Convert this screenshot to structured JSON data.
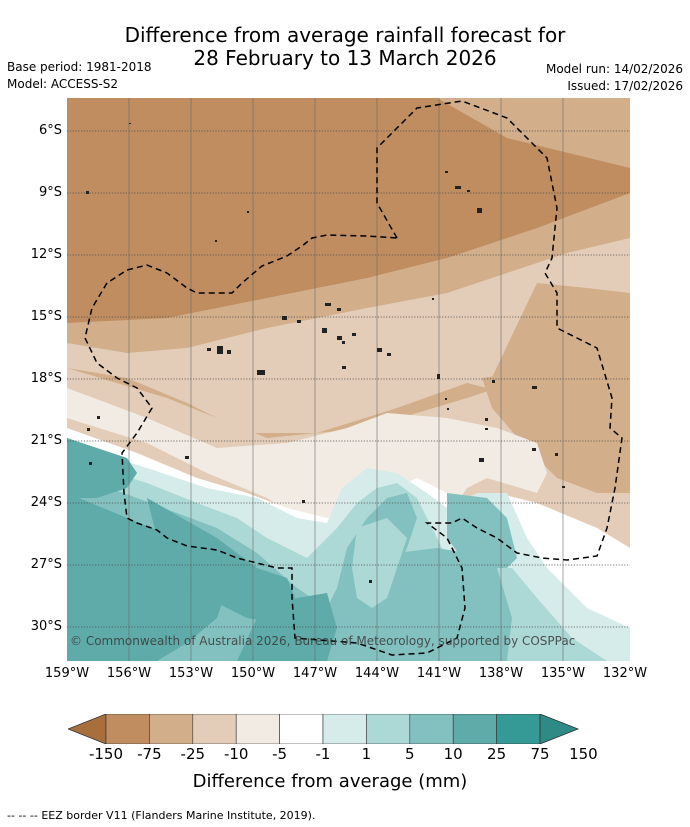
{
  "title": {
    "line1": "Difference from average rainfall forecast for",
    "line2": "28 February to 13 March 2026"
  },
  "meta": {
    "base_period": "Base period: 1981-2018",
    "model": "Model: ACCESS-S2",
    "model_run": "Model run: 14/02/2026",
    "issued": "Issued: 17/02/2026"
  },
  "map": {
    "lat_labels": [
      "6°S",
      "9°S",
      "12°S",
      "15°S",
      "18°S",
      "21°S",
      "24°S",
      "27°S",
      "30°S"
    ],
    "lon_labels": [
      "159°W",
      "156°W",
      "153°W",
      "150°W",
      "147°W",
      "144°W",
      "141°W",
      "138°W",
      "135°W",
      "132°W"
    ],
    "copyright": "© Commonwealth of Australia 2026, Bureau of Meteorology, supported by COSPPac"
  },
  "colorbar": {
    "ticks": [
      "-150",
      "-75",
      "-25",
      "-10",
      "-5",
      "-1",
      "1",
      "5",
      "10",
      "25",
      "75",
      "150"
    ],
    "colors": [
      "#a86e3b",
      "#bf8d60",
      "#d2ae8a",
      "#e3cdb8",
      "#f2ebe4",
      "#ffffff",
      "#d6ecea",
      "#acd8d6",
      "#83c1c0",
      "#5eabaa",
      "#359996",
      "#2d8a85"
    ],
    "title": "Difference from average (mm)"
  },
  "legend": {
    "eez_marker": "-- -- --",
    "eez_label": "EEZ border V11 (Flanders Marine Institute, 2019)."
  }
}
